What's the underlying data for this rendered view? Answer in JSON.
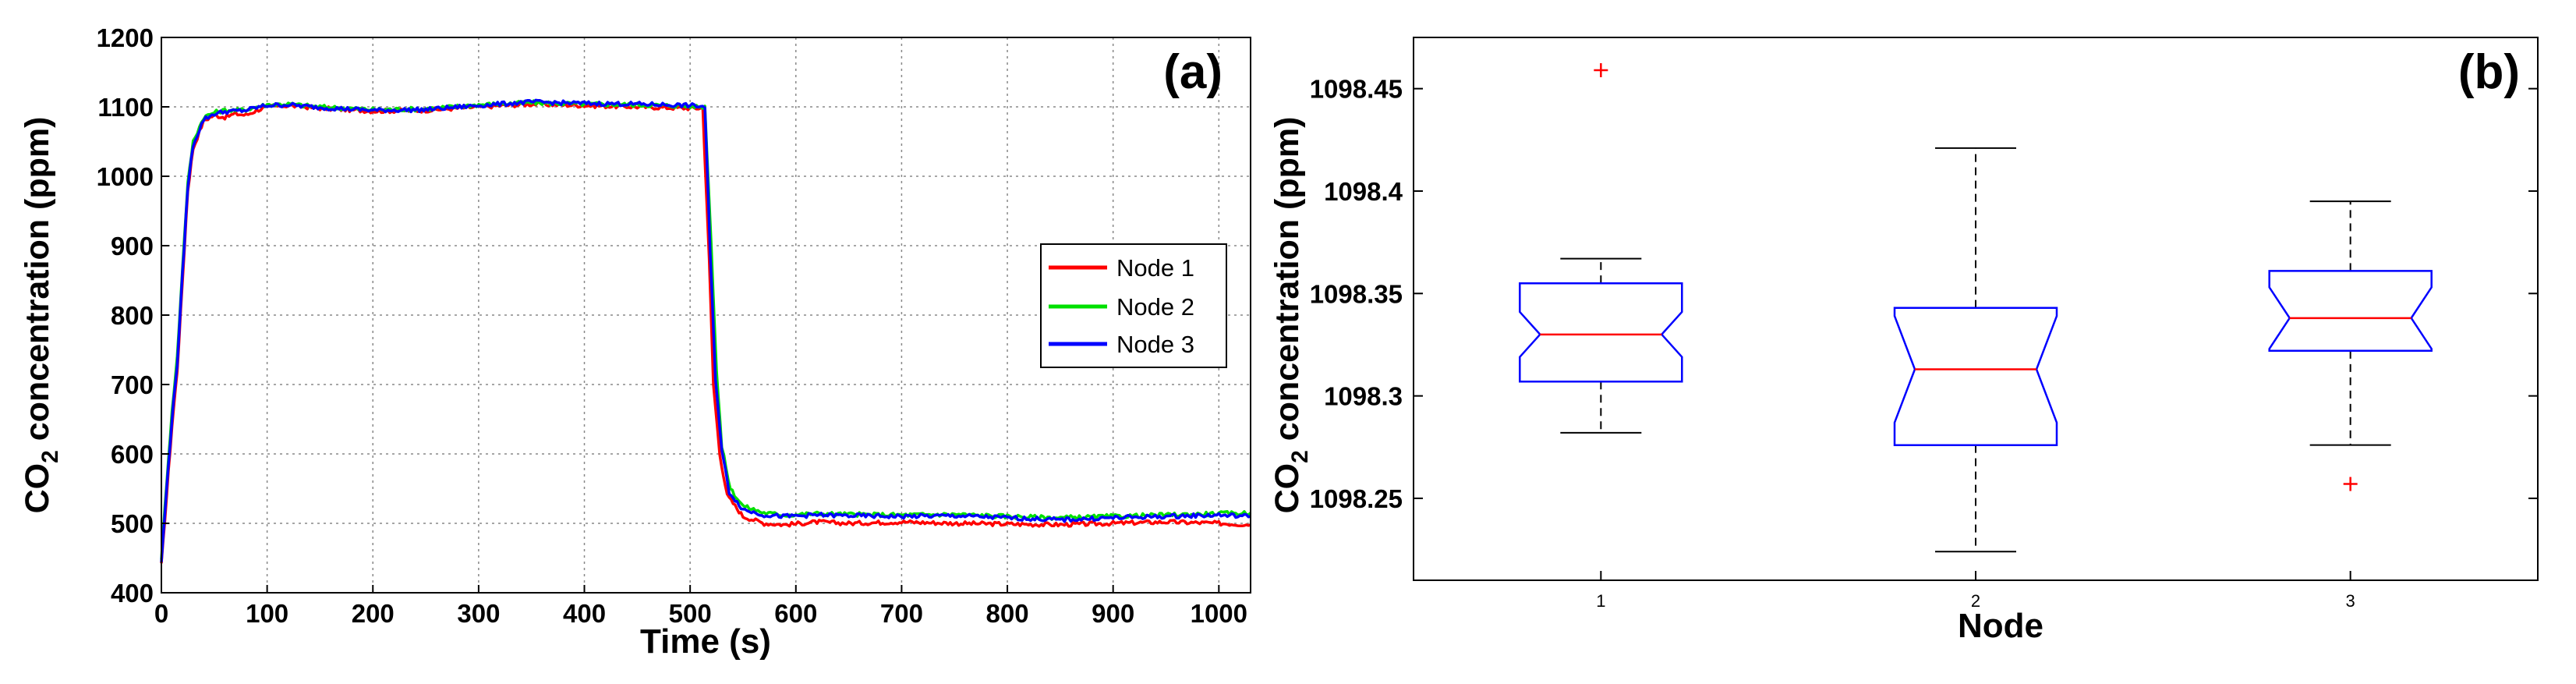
{
  "chart_data": [
    {
      "type": "line",
      "panel_label": "(a)",
      "xlabel": "Time (s)",
      "ylabel_prefix": "CO",
      "ylabel_sub": "2",
      "ylabel_suffix": " concentration (ppm)",
      "xlim": [
        0,
        1030
      ],
      "ylim": [
        400,
        1200
      ],
      "x_ticks": [
        0,
        100,
        200,
        300,
        400,
        500,
        600,
        700,
        800,
        900,
        1000
      ],
      "y_ticks": [
        400,
        500,
        600,
        700,
        800,
        900,
        1000,
        1100,
        1200
      ],
      "grid": true,
      "legend_position": "center-right",
      "series": [
        {
          "name": "Node 1",
          "color": "#ff0000",
          "points": [
            [
              0,
              440
            ],
            [
              5,
              540
            ],
            [
              10,
              640
            ],
            [
              15,
              720
            ],
            [
              20,
              850
            ],
            [
              25,
              980
            ],
            [
              30,
              1040
            ],
            [
              40,
              1080
            ],
            [
              50,
              1088
            ],
            [
              60,
              1085
            ],
            [
              70,
              1090
            ],
            [
              80,
              1088
            ],
            [
              90,
              1095
            ],
            [
              100,
              1100
            ],
            [
              120,
              1102
            ],
            [
              150,
              1098
            ],
            [
              200,
              1094
            ],
            [
              250,
              1095
            ],
            [
              300,
              1100
            ],
            [
              350,
              1104
            ],
            [
              400,
              1102
            ],
            [
              450,
              1100
            ],
            [
              500,
              1098
            ],
            [
              512,
              1098
            ],
            [
              518,
              880
            ],
            [
              522,
              700
            ],
            [
              528,
              600
            ],
            [
              535,
              540
            ],
            [
              550,
              510
            ],
            [
              570,
              500
            ],
            [
              590,
              498
            ],
            [
              620,
              502
            ],
            [
              650,
              500
            ],
            [
              700,
              502
            ],
            [
              750,
              500
            ],
            [
              800,
              499
            ],
            [
              850,
              498
            ],
            [
              900,
              500
            ],
            [
              950,
              502
            ],
            [
              1000,
              500
            ],
            [
              1030,
              498
            ]
          ]
        },
        {
          "name": "Node 2",
          "color": "#00e000",
          "points": [
            [
              0,
              450
            ],
            [
              5,
              560
            ],
            [
              10,
              660
            ],
            [
              15,
              740
            ],
            [
              20,
              870
            ],
            [
              25,
              990
            ],
            [
              30,
              1050
            ],
            [
              40,
              1085
            ],
            [
              50,
              1092
            ],
            [
              60,
              1095
            ],
            [
              70,
              1095
            ],
            [
              80,
              1096
            ],
            [
              90,
              1100
            ],
            [
              100,
              1103
            ],
            [
              120,
              1104
            ],
            [
              150,
              1100
            ],
            [
              200,
              1096
            ],
            [
              250,
              1097
            ],
            [
              300,
              1103
            ],
            [
              350,
              1106
            ],
            [
              400,
              1104
            ],
            [
              450,
              1103
            ],
            [
              500,
              1101
            ],
            [
              514,
              1100
            ],
            [
              520,
              900
            ],
            [
              525,
              720
            ],
            [
              530,
              610
            ],
            [
              538,
              550
            ],
            [
              550,
              525
            ],
            [
              570,
              515
            ],
            [
              590,
              512
            ],
            [
              620,
              514
            ],
            [
              650,
              513
            ],
            [
              700,
              512
            ],
            [
              750,
              513
            ],
            [
              800,
              510
            ],
            [
              850,
              508
            ],
            [
              900,
              510
            ],
            [
              950,
              512
            ],
            [
              1000,
              514
            ],
            [
              1030,
              515
            ]
          ]
        },
        {
          "name": "Node 3",
          "color": "#0000ff",
          "points": [
            [
              0,
              445
            ],
            [
              5,
              550
            ],
            [
              10,
              650
            ],
            [
              15,
              730
            ],
            [
              20,
              860
            ],
            [
              25,
              985
            ],
            [
              30,
              1045
            ],
            [
              40,
              1082
            ],
            [
              50,
              1090
            ],
            [
              60,
              1093
            ],
            [
              70,
              1094
            ],
            [
              80,
              1095
            ],
            [
              90,
              1099
            ],
            [
              100,
              1102
            ],
            [
              120,
              1103
            ],
            [
              150,
              1099
            ],
            [
              200,
              1095
            ],
            [
              250,
              1096
            ],
            [
              300,
              1102
            ],
            [
              350,
              1107
            ],
            [
              400,
              1105
            ],
            [
              450,
              1104
            ],
            [
              500,
              1102
            ],
            [
              514,
              1100
            ],
            [
              519,
              890
            ],
            [
              524,
              710
            ],
            [
              530,
              605
            ],
            [
              537,
              545
            ],
            [
              550,
              520
            ],
            [
              570,
              512
            ],
            [
              590,
              510
            ],
            [
              620,
              512
            ],
            [
              650,
              511
            ],
            [
              700,
              510
            ],
            [
              750,
              511
            ],
            [
              800,
              508
            ],
            [
              850,
              505
            ],
            [
              900,
              508
            ],
            [
              950,
              510
            ],
            [
              1000,
              512
            ],
            [
              1030,
              510
            ]
          ]
        }
      ]
    },
    {
      "type": "box",
      "panel_label": "(b)",
      "xlabel": "Node",
      "ylabel_prefix": "CO",
      "ylabel_sub": "2",
      "ylabel_suffix": " concentration (ppm)",
      "ylim": [
        1098.21,
        1098.475
      ],
      "y_ticks": [
        1098.25,
        1098.3,
        1098.35,
        1098.4,
        1098.45
      ],
      "y_tick_labels": [
        "1098.25",
        "1098.3",
        "1098.35",
        "1098.4",
        "1098.45"
      ],
      "categories": [
        "1",
        "2",
        "3"
      ],
      "notched": true,
      "box_color": "#0000ff",
      "median_color": "#ff0000",
      "outlier_color": "#ff0000",
      "boxes": [
        {
          "name": "1",
          "whisker_low": 1098.282,
          "q1": 1098.307,
          "median": 1098.33,
          "q3": 1098.355,
          "whisker_high": 1098.367,
          "notch_low": 1098.319,
          "notch_high": 1098.341,
          "outliers": [
            1098.459
          ]
        },
        {
          "name": "2",
          "whisker_low": 1098.224,
          "q1": 1098.276,
          "median": 1098.313,
          "q3": 1098.343,
          "whisker_high": 1098.421,
          "notch_low": 1098.287,
          "notch_high": 1098.339,
          "outliers": []
        },
        {
          "name": "3",
          "whisker_low": 1098.276,
          "q1": 1098.322,
          "median": 1098.338,
          "q3": 1098.361,
          "whisker_high": 1098.395,
          "notch_low": 1098.323,
          "notch_high": 1098.353,
          "outliers": [
            1098.257
          ]
        }
      ]
    }
  ]
}
